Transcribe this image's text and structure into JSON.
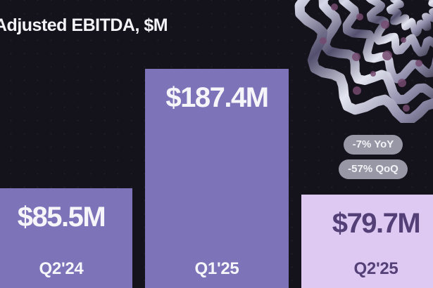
{
  "title": "Adjusted EBITDA, $M",
  "chart_data": {
    "type": "bar",
    "title": "Adjusted EBITDA, $M",
    "unit": "$M",
    "categories": [
      "Q2'24",
      "Q1'25",
      "Q2'25"
    ],
    "values": [
      85.5,
      187.4,
      79.7
    ],
    "value_labels": [
      "$85.5M",
      "$187.4M",
      "$79.7M"
    ],
    "annotations": [
      {
        "target": "Q2'25",
        "label": "-7% YoY"
      },
      {
        "target": "Q2'25",
        "label": "-57% QoQ"
      }
    ],
    "legend": false,
    "axes_visible": false,
    "gridlines": false
  },
  "bars": [
    {
      "value_label": "$85.5M",
      "category": "Q2'24",
      "fill": "#7d73b8",
      "text_color": "#f6f5fa"
    },
    {
      "value_label": "$187.4M",
      "category": "Q1'25",
      "fill": "#7d73b8",
      "text_color": "#f6f5fa"
    },
    {
      "value_label": "$79.7M",
      "category": "Q2'25",
      "fill": "#ddc9f2",
      "text_color": "#544077"
    }
  ],
  "badges": [
    {
      "label": "-7% YoY"
    },
    {
      "label": "-57% QoQ"
    }
  ],
  "colors": {
    "background": "#14121a",
    "bar_purple": "#7d73b8",
    "bar_light": "#ddc9f2",
    "text_light": "#f4f3f8",
    "text_dark_purple": "#544077",
    "badge_bg": "#9897a6",
    "badge_text": "#f2f2f6",
    "deco_plum": "#744a70"
  }
}
